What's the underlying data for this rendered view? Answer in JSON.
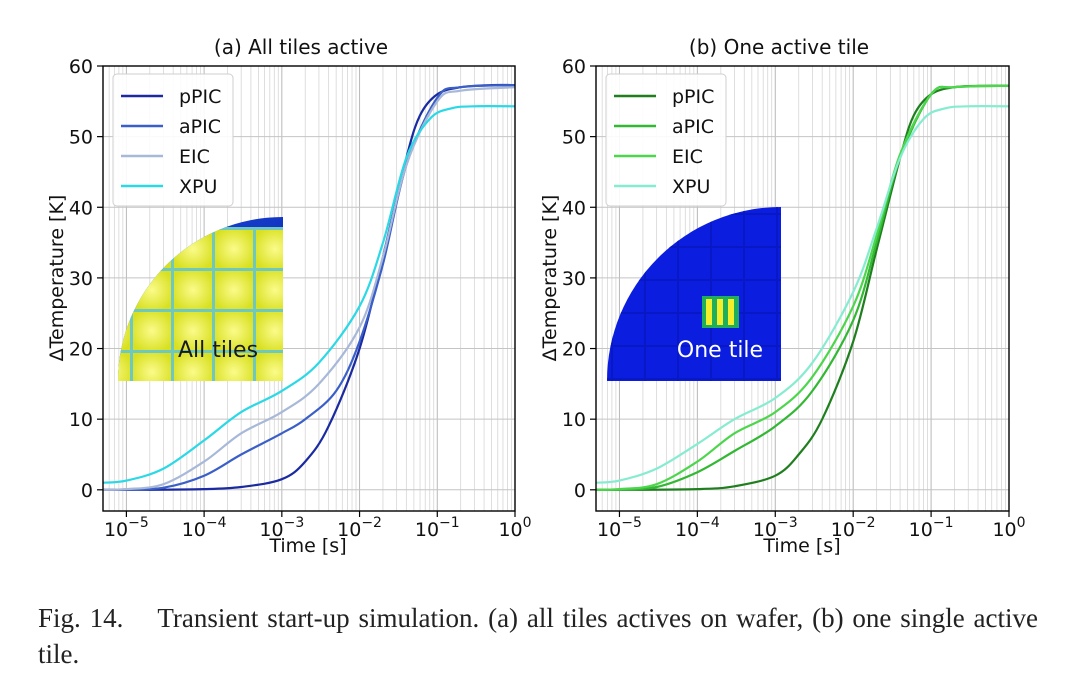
{
  "caption": {
    "label": "Fig. 14.",
    "text": "Transient start-up simulation. (a) all tiles actives on wafer, (b) one single active tile."
  },
  "chart_data": [
    {
      "type": "line",
      "title": "(a) All tiles active",
      "xlabel": "Time [s]",
      "ylabel": "ΔTemperature [K]",
      "xscale": "log",
      "xlim": [
        5e-06,
        1
      ],
      "ylim": [
        -3,
        60
      ],
      "xticks": [
        1e-05,
        0.0001,
        0.001,
        0.01,
        0.1,
        1
      ],
      "xtick_labels": [
        {
          "base": "10",
          "exp": "−5"
        },
        {
          "base": "10",
          "exp": "−4"
        },
        {
          "base": "10",
          "exp": "−3"
        },
        {
          "base": "10",
          "exp": "−2"
        },
        {
          "base": "10",
          "exp": "−1"
        },
        {
          "base": "10",
          "exp": "0"
        }
      ],
      "yticks": [
        0,
        10,
        20,
        30,
        40,
        50,
        60
      ],
      "grid": true,
      "legend_position": "top-left",
      "inset_label": "All tiles",
      "series": [
        {
          "name": "pPIC",
          "color": "#1a2aa0",
          "x": [
            5e-06,
            1e-05,
            0.0001,
            0.0003,
            0.001,
            0.002,
            0.004,
            0.01,
            0.02,
            0.04,
            0.06,
            0.1,
            0.2,
            0.5,
            1
          ],
          "y": [
            0,
            0,
            0.1,
            0.4,
            1.5,
            4,
            9,
            20,
            33,
            47,
            53,
            56,
            57,
            57.3,
            57.3
          ]
        },
        {
          "name": "aPIC",
          "color": "#3a5fc8",
          "x": [
            5e-06,
            1e-05,
            3e-05,
            0.0001,
            0.0003,
            0.001,
            0.002,
            0.005,
            0.01,
            0.02,
            0.04,
            0.1,
            0.2,
            1
          ],
          "y": [
            0,
            0.05,
            0.3,
            2,
            5,
            8,
            10,
            14,
            21,
            32,
            46,
            55.5,
            57,
            57.3
          ]
        },
        {
          "name": "EIC",
          "color": "#a8b8d8",
          "x": [
            5e-06,
            1e-05,
            3e-05,
            0.0001,
            0.0003,
            0.001,
            0.003,
            0.01,
            0.02,
            0.04,
            0.1,
            0.2,
            1
          ],
          "y": [
            0,
            0.1,
            0.8,
            4,
            8,
            11,
            15,
            23,
            33,
            46,
            55,
            56.5,
            57
          ]
        },
        {
          "name": "XPU",
          "color": "#2ad8e6",
          "x": [
            5e-06,
            1e-05,
            3e-05,
            0.0001,
            0.0003,
            0.001,
            0.003,
            0.01,
            0.02,
            0.04,
            0.08,
            0.15,
            0.3,
            1
          ],
          "y": [
            1,
            1.3,
            3,
            7,
            11,
            14,
            18,
            26,
            35,
            47,
            52.5,
            54,
            54.3,
            54.3
          ]
        }
      ]
    },
    {
      "type": "line",
      "title": "(b) One active tile",
      "xlabel": "Time [s]",
      "ylabel": "ΔTemperature [K]",
      "xscale": "log",
      "xlim": [
        5e-06,
        1
      ],
      "ylim": [
        -3,
        60
      ],
      "xticks": [
        1e-05,
        0.0001,
        0.001,
        0.01,
        0.1,
        1
      ],
      "xtick_labels": [
        {
          "base": "10",
          "exp": "−5"
        },
        {
          "base": "10",
          "exp": "−4"
        },
        {
          "base": "10",
          "exp": "−3"
        },
        {
          "base": "10",
          "exp": "−2"
        },
        {
          "base": "10",
          "exp": "−1"
        },
        {
          "base": "10",
          "exp": "0"
        }
      ],
      "yticks": [
        0,
        10,
        20,
        30,
        40,
        50,
        60
      ],
      "grid": true,
      "legend_position": "top-left",
      "inset_label": "One tile",
      "series": [
        {
          "name": "pPIC",
          "color": "#1f7f1f",
          "x": [
            5e-06,
            1e-05,
            0.0001,
            0.0003,
            0.001,
            0.002,
            0.004,
            0.01,
            0.02,
            0.04,
            0.06,
            0.1,
            0.2,
            0.5,
            1
          ],
          "y": [
            0,
            0,
            0.1,
            0.5,
            2,
            5,
            10,
            21,
            34,
            47,
            53,
            56,
            57,
            57.2,
            57.2
          ]
        },
        {
          "name": "aPIC",
          "color": "#32b832",
          "x": [
            5e-06,
            1e-05,
            3e-05,
            0.0001,
            0.0003,
            0.001,
            0.003,
            0.01,
            0.02,
            0.04,
            0.1,
            0.2,
            1
          ],
          "y": [
            0,
            0.05,
            0.4,
            2.5,
            5.5,
            9,
            14,
            24,
            35,
            47,
            56,
            57,
            57.2
          ]
        },
        {
          "name": "EIC",
          "color": "#4cd64c",
          "x": [
            5e-06,
            1e-05,
            3e-05,
            0.0001,
            0.0003,
            0.001,
            0.003,
            0.01,
            0.02,
            0.04,
            0.1,
            0.2,
            1
          ],
          "y": [
            0,
            0.1,
            0.8,
            4,
            8,
            11,
            16,
            26,
            36,
            47.5,
            56,
            57,
            57.2
          ]
        },
        {
          "name": "XPU",
          "color": "#86ecd0",
          "x": [
            5e-06,
            1e-05,
            3e-05,
            0.0001,
            0.0003,
            0.001,
            0.003,
            0.01,
            0.02,
            0.04,
            0.08,
            0.15,
            0.3,
            1
          ],
          "y": [
            1,
            1.3,
            3,
            6.5,
            10,
            13,
            18,
            28,
            37,
            47,
            52.5,
            54,
            54.3,
            54.3
          ]
        }
      ]
    }
  ]
}
